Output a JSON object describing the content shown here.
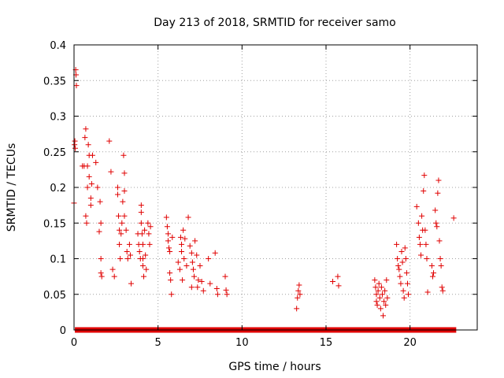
{
  "chart_data": {
    "type": "scatter",
    "title": "Day 213 of 2018, SRMTID for receiver samo",
    "xlabel": "GPS time / hours",
    "ylabel": "SRMTID / TECUs",
    "xlim": [
      0,
      24
    ],
    "ylim": [
      0,
      0.4
    ],
    "grid": true,
    "marker": "+",
    "series_color": "#e00000",
    "x_ticks": [
      0,
      5,
      10,
      15,
      20
    ],
    "y_ticks": [
      0,
      0.05,
      0.1,
      0.15,
      0.2,
      0.25,
      0.3,
      0.35,
      0.4
    ],
    "x_tick_labels": [
      "0",
      "5",
      "10",
      "15",
      "20"
    ],
    "y_tick_labels": [
      "0",
      "0.05",
      "0.1",
      "0.15",
      "0.2",
      "0.25",
      "0.3",
      "0.35",
      "0.4"
    ],
    "zero_band": {
      "y": 0,
      "x_from": 0.05,
      "x_to": 22.75
    },
    "points": [
      [
        0.0,
        0.178
      ],
      [
        0.03,
        0.26
      ],
      [
        0.05,
        0.265
      ],
      [
        0.07,
        0.255
      ],
      [
        0.1,
        0.365
      ],
      [
        0.12,
        0.358
      ],
      [
        0.14,
        0.343
      ],
      [
        0.5,
        0.23
      ],
      [
        0.6,
        0.23
      ],
      [
        0.65,
        0.27
      ],
      [
        0.7,
        0.282
      ],
      [
        0.7,
        0.16
      ],
      [
        0.75,
        0.15
      ],
      [
        0.8,
        0.23
      ],
      [
        0.8,
        0.2
      ],
      [
        0.85,
        0.26
      ],
      [
        0.9,
        0.245
      ],
      [
        0.9,
        0.215
      ],
      [
        1.0,
        0.185
      ],
      [
        1.0,
        0.175
      ],
      [
        1.05,
        0.205
      ],
      [
        1.1,
        0.245
      ],
      [
        1.3,
        0.235
      ],
      [
        1.4,
        0.2
      ],
      [
        1.5,
        0.138
      ],
      [
        1.55,
        0.18
      ],
      [
        1.6,
        0.15
      ],
      [
        1.6,
        0.1
      ],
      [
        1.6,
        0.08
      ],
      [
        1.65,
        0.075
      ],
      [
        2.1,
        0.265
      ],
      [
        2.2,
        0.222
      ],
      [
        2.3,
        0.085
      ],
      [
        2.4,
        0.075
      ],
      [
        2.6,
        0.2
      ],
      [
        2.6,
        0.19
      ],
      [
        2.65,
        0.16
      ],
      [
        2.7,
        0.14
      ],
      [
        2.7,
        0.12
      ],
      [
        2.75,
        0.1
      ],
      [
        2.8,
        0.135
      ],
      [
        2.85,
        0.15
      ],
      [
        2.9,
        0.18
      ],
      [
        2.95,
        0.245
      ],
      [
        3.0,
        0.22
      ],
      [
        3.0,
        0.195
      ],
      [
        3.0,
        0.16
      ],
      [
        3.1,
        0.14
      ],
      [
        3.15,
        0.11
      ],
      [
        3.2,
        0.1
      ],
      [
        3.3,
        0.12
      ],
      [
        3.35,
        0.105
      ],
      [
        3.4,
        0.065
      ],
      [
        3.8,
        0.135
      ],
      [
        3.85,
        0.12
      ],
      [
        3.9,
        0.11
      ],
      [
        3.95,
        0.1
      ],
      [
        4.0,
        0.175
      ],
      [
        4.0,
        0.165
      ],
      [
        4.0,
        0.15
      ],
      [
        4.05,
        0.135
      ],
      [
        4.1,
        0.12
      ],
      [
        4.1,
        0.1
      ],
      [
        4.1,
        0.09
      ],
      [
        4.15,
        0.075
      ],
      [
        4.2,
        0.14
      ],
      [
        4.25,
        0.105
      ],
      [
        4.3,
        0.085
      ],
      [
        4.4,
        0.15
      ],
      [
        4.45,
        0.135
      ],
      [
        4.5,
        0.12
      ],
      [
        4.55,
        0.145
      ],
      [
        5.5,
        0.158
      ],
      [
        5.55,
        0.145
      ],
      [
        5.6,
        0.135
      ],
      [
        5.6,
        0.125
      ],
      [
        5.65,
        0.115
      ],
      [
        5.7,
        0.11
      ],
      [
        5.7,
        0.08
      ],
      [
        5.75,
        0.07
      ],
      [
        5.8,
        0.05
      ],
      [
        5.85,
        0.13
      ],
      [
        6.2,
        0.095
      ],
      [
        6.3,
        0.085
      ],
      [
        6.35,
        0.13
      ],
      [
        6.4,
        0.12
      ],
      [
        6.4,
        0.11
      ],
      [
        6.45,
        0.07
      ],
      [
        6.5,
        0.14
      ],
      [
        6.55,
        0.1
      ],
      [
        6.6,
        0.128
      ],
      [
        6.7,
        0.09
      ],
      [
        6.8,
        0.158
      ],
      [
        6.9,
        0.118
      ],
      [
        7.0,
        0.108
      ],
      [
        7.0,
        0.06
      ],
      [
        7.05,
        0.095
      ],
      [
        7.1,
        0.085
      ],
      [
        7.15,
        0.075
      ],
      [
        7.2,
        0.125
      ],
      [
        7.3,
        0.105
      ],
      [
        7.35,
        0.06
      ],
      [
        7.4,
        0.07
      ],
      [
        7.5,
        0.09
      ],
      [
        7.6,
        0.068
      ],
      [
        7.7,
        0.055
      ],
      [
        8.0,
        0.1
      ],
      [
        8.1,
        0.065
      ],
      [
        8.4,
        0.108
      ],
      [
        8.5,
        0.058
      ],
      [
        8.55,
        0.05
      ],
      [
        9.0,
        0.075
      ],
      [
        9.05,
        0.056
      ],
      [
        9.1,
        0.05
      ],
      [
        13.25,
        0.03
      ],
      [
        13.3,
        0.045
      ],
      [
        13.35,
        0.055
      ],
      [
        13.4,
        0.063
      ],
      [
        13.45,
        0.05
      ],
      [
        15.4,
        0.068
      ],
      [
        15.7,
        0.075
      ],
      [
        15.75,
        0.062
      ],
      [
        17.9,
        0.07
      ],
      [
        17.95,
        0.06
      ],
      [
        18.0,
        0.05
      ],
      [
        18.0,
        0.04
      ],
      [
        18.05,
        0.035
      ],
      [
        18.1,
        0.055
      ],
      [
        18.15,
        0.065
      ],
      [
        18.2,
        0.045
      ],
      [
        18.25,
        0.03
      ],
      [
        18.3,
        0.06
      ],
      [
        18.35,
        0.05
      ],
      [
        18.4,
        0.02
      ],
      [
        18.45,
        0.04
      ],
      [
        18.5,
        0.055
      ],
      [
        18.55,
        0.035
      ],
      [
        18.6,
        0.07
      ],
      [
        18.65,
        0.045
      ],
      [
        19.2,
        0.12
      ],
      [
        19.25,
        0.1
      ],
      [
        19.3,
        0.09
      ],
      [
        19.35,
        0.085
      ],
      [
        19.4,
        0.075
      ],
      [
        19.45,
        0.065
      ],
      [
        19.5,
        0.11
      ],
      [
        19.55,
        0.095
      ],
      [
        19.6,
        0.055
      ],
      [
        19.65,
        0.045
      ],
      [
        19.7,
        0.115
      ],
      [
        19.75,
        0.1
      ],
      [
        19.8,
        0.08
      ],
      [
        19.85,
        0.065
      ],
      [
        19.9,
        0.05
      ],
      [
        20.4,
        0.173
      ],
      [
        20.5,
        0.15
      ],
      [
        20.55,
        0.13
      ],
      [
        20.6,
        0.12
      ],
      [
        20.65,
        0.105
      ],
      [
        20.7,
        0.16
      ],
      [
        20.75,
        0.14
      ],
      [
        20.8,
        0.195
      ],
      [
        20.85,
        0.217
      ],
      [
        20.9,
        0.14
      ],
      [
        20.95,
        0.12
      ],
      [
        21.0,
        0.1
      ],
      [
        21.05,
        0.053
      ],
      [
        21.3,
        0.09
      ],
      [
        21.35,
        0.075
      ],
      [
        21.4,
        0.08
      ],
      [
        21.5,
        0.168
      ],
      [
        21.55,
        0.15
      ],
      [
        21.6,
        0.145
      ],
      [
        21.65,
        0.192
      ],
      [
        21.7,
        0.21
      ],
      [
        21.75,
        0.125
      ],
      [
        21.8,
        0.1
      ],
      [
        21.85,
        0.09
      ],
      [
        21.9,
        0.06
      ],
      [
        21.95,
        0.055
      ],
      [
        22.6,
        0.157
      ]
    ]
  }
}
